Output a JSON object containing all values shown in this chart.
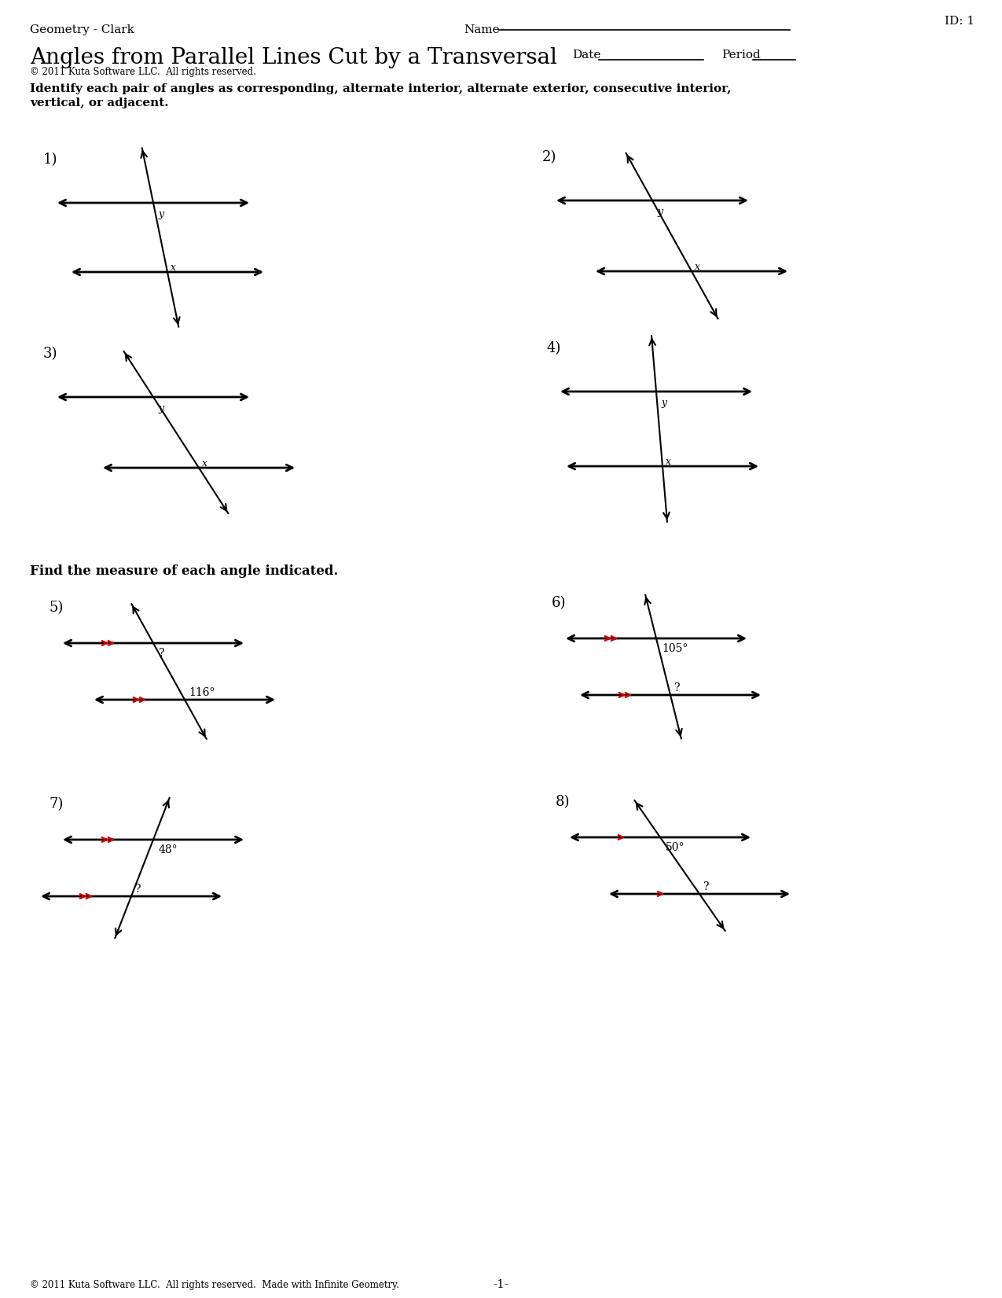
{
  "title": "Angles from Parallel Lines Cut by a Transversal",
  "subtitle": "© 2011 Kuta Software LLC.  All rights reserved.",
  "header_left": "Geometry - Clark",
  "header_right": "Name",
  "header_id": "ID: 1",
  "date_label": "Date",
  "period_label": "Period",
  "instruction1": "Identify each pair of angles as corresponding, alternate interior, alternate exterior, consecutive interior,",
  "instruction1b": "vertical, or adjacent.",
  "instruction2": "Find the measure of each angle indicated.",
  "footer": "© 2011 Kuta Software LLC.  All rights reserved.  Made with Infinite Geometry.",
  "page_num": "-1-",
  "background": "#ffffff",
  "line_color": "#000000",
  "red_color": "#cc0000",
  "font_size_header": 11,
  "font_size_title": 20,
  "font_size_instruction": 11,
  "font_size_number": 13,
  "font_size_label": 9,
  "font_size_find": 12
}
